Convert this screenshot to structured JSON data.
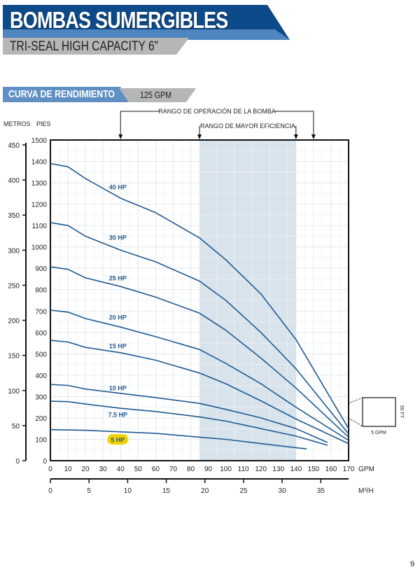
{
  "header": {
    "title": "BOMBAS SUMERGIBLES",
    "subtitle": "TRI-SEAL HIGH CAPACITY 6”"
  },
  "section": {
    "label": "CURVA DE RENDIMIENTO",
    "flow": "125 GPM"
  },
  "page_number": "9",
  "colors": {
    "curve": "#1f5a91",
    "shade": "#d8e3ec",
    "banner": "#0d4a8a",
    "highlight": "#f5d300"
  },
  "chart_data": {
    "type": "line",
    "title": "CURVA DE RENDIMIENTO",
    "xlabel": "GPM",
    "x2label": "M³/H",
    "ylabel": "PIES",
    "y2label": "METROS",
    "xlim": [
      0,
      170
    ],
    "ylim": [
      0,
      1500
    ],
    "y2lim": [
      0,
      457
    ],
    "x2lim": [
      0,
      38.6
    ],
    "xticks": [
      0,
      10,
      20,
      30,
      40,
      50,
      60,
      70,
      80,
      90,
      100,
      110,
      120,
      130,
      140,
      150,
      160,
      170
    ],
    "yticks": [
      0,
      100,
      200,
      300,
      400,
      500,
      600,
      700,
      800,
      900,
      1000,
      1100,
      1200,
      1300,
      1400,
      1500
    ],
    "y2ticks": [
      0,
      50,
      100,
      150,
      200,
      250,
      300,
      350,
      400,
      450
    ],
    "x2ticks": [
      0,
      5,
      10,
      15,
      20,
      25,
      30,
      35
    ],
    "grid": true,
    "operating_range": {
      "label": "RANGO DE OPERACIÓN DE LA BOMBA",
      "x": [
        40,
        150
      ]
    },
    "efficiency_range": {
      "label": "RANGO DE MAYOR EFICIENCIA",
      "x": [
        85,
        140
      ]
    },
    "scale_box": {
      "x_label": "5 GPM",
      "y_label": "50 FT"
    },
    "series": [
      {
        "name": "40 HP",
        "x": [
          0,
          10,
          20,
          40,
          60,
          85,
          100,
          120,
          140,
          170
        ],
        "y": [
          1390,
          1375,
          1320,
          1228,
          1160,
          1042,
          940,
          780,
          567,
          150
        ],
        "label_at": [
          40,
          1280
        ]
      },
      {
        "name": "30 HP",
        "x": [
          0,
          10,
          20,
          40,
          60,
          85,
          100,
          120,
          140,
          170
        ],
        "y": [
          1114,
          1100,
          1050,
          985,
          930,
          840,
          750,
          600,
          430,
          125
        ],
        "label_at": [
          40,
          1045
        ]
      },
      {
        "name": "25 HP",
        "x": [
          0,
          10,
          20,
          40,
          60,
          85,
          100,
          120,
          140,
          170
        ],
        "y": [
          907,
          895,
          855,
          815,
          765,
          690,
          610,
          480,
          340,
          110
        ],
        "label_at": [
          40,
          855
        ]
      },
      {
        "name": "20 HP",
        "x": [
          0,
          10,
          20,
          40,
          60,
          85,
          100,
          120,
          140,
          170
        ],
        "y": [
          704,
          695,
          665,
          625,
          580,
          520,
          455,
          360,
          250,
          95
        ],
        "label_at": [
          40,
          672
        ]
      },
      {
        "name": "15 HP",
        "x": [
          0,
          10,
          20,
          40,
          60,
          85,
          100,
          120,
          140,
          170
        ],
        "y": [
          563,
          555,
          530,
          505,
          470,
          410,
          360,
          280,
          195,
          80
        ],
        "label_at": [
          40,
          537
        ]
      },
      {
        "name": "10 HP",
        "x": [
          0,
          10,
          20,
          40,
          60,
          85,
          100,
          120,
          140,
          158
        ],
        "y": [
          357,
          352,
          335,
          315,
          295,
          268,
          240,
          200,
          150,
          85
        ],
        "label_at": [
          40,
          341
        ]
      },
      {
        "name": "7.5 HP",
        "x": [
          0,
          10,
          20,
          40,
          60,
          85,
          100,
          120,
          140,
          158
        ],
        "y": [
          278,
          276,
          265,
          245,
          230,
          205,
          185,
          150,
          115,
          72
        ],
        "label_at": [
          40,
          216
        ]
      },
      {
        "name": "5 HP",
        "x": [
          0,
          20,
          40,
          60,
          85,
          100,
          120,
          146
        ],
        "y": [
          145,
          142,
          135,
          128,
          110,
          100,
          80,
          55
        ],
        "label_at": [
          40,
          98
        ],
        "highlight": true
      }
    ]
  }
}
